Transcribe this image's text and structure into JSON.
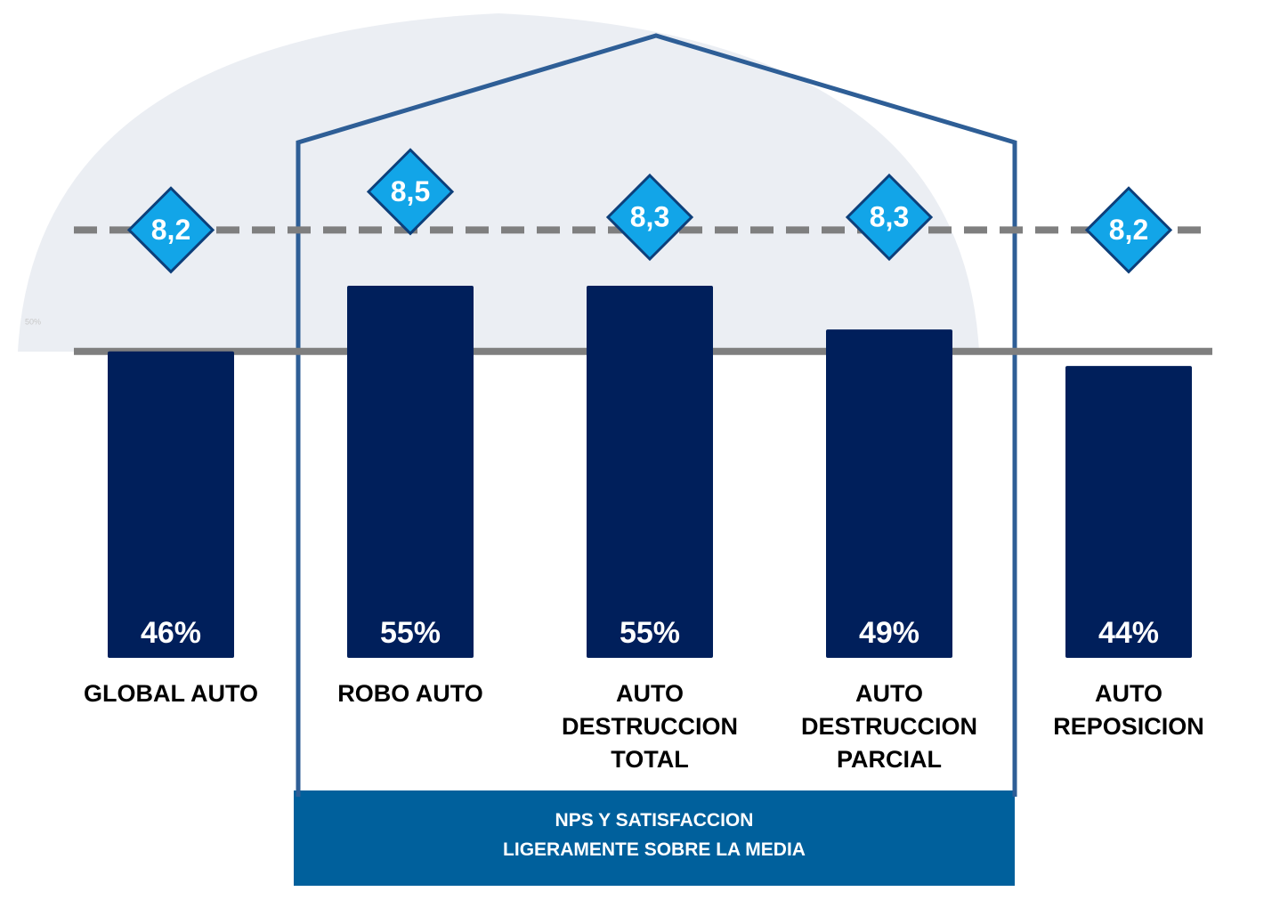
{
  "chart_data": {
    "type": "bar",
    "categories": [
      "GLOBAL AUTO",
      "ROBO AUTO",
      "AUTO\nDESTRUCCION\nTOTAL",
      "AUTO\nDESTRUCCION\nPARCIAL",
      "AUTO\nREPOSICION"
    ],
    "series": [
      {
        "color": "#001f5b",
        "values": [
          46,
          55,
          55,
          49,
          44
        ],
        "value_labels": [
          "46%",
          "55%",
          "55%",
          "49%",
          "44%"
        ]
      },
      {
        "color": "#12a5e8",
        "values": [
          8.2,
          8.5,
          8.3,
          8.3,
          8.2
        ],
        "value_labels": [
          "8,2",
          "8,5",
          "8,3",
          "8,3",
          "8,2"
        ],
        "axis": "y2"
      }
    ],
    "ylim": [
      4,
      60
    ],
    "yticks": [
      {
        "value": 50,
        "label": "50%"
      }
    ],
    "y2lim": [
      8.0,
      8.6
    ],
    "reference_lines": [
      {
        "axis": "y",
        "value": 46,
        "color": "#7f7f7f",
        "dashed": false
      },
      {
        "axis": "y2",
        "value": 8.2,
        "color": "#7f7f7f",
        "dashed": true
      }
    ],
    "annotation": "NPS Y SATISFACCION\nLIGERAMENTE SOBRE LA MEDIA"
  }
}
